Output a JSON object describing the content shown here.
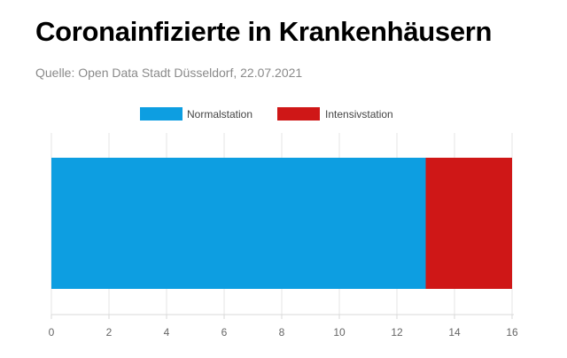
{
  "header": {
    "title": "Coronainfizierte in Krankenhäusern",
    "source": "Quelle: Open Data Stadt Düsseldorf, 22.07.2021"
  },
  "colors": {
    "normal": "#0d9ee1",
    "intensiv": "#cf1717",
    "grid": "#e6e6e6",
    "axis": "#d9d9d9"
  },
  "chart_data": {
    "type": "bar",
    "orientation": "horizontal",
    "stacked": true,
    "categories": [
      ""
    ],
    "series": [
      {
        "name": "Normalstation",
        "values": [
          13
        ]
      },
      {
        "name": "Intensivstation",
        "values": [
          3
        ]
      }
    ],
    "xlim": [
      0,
      16
    ],
    "xticks": [
      0,
      2,
      4,
      6,
      8,
      10,
      12,
      14,
      16
    ],
    "grid": true,
    "legend": "top-center"
  }
}
